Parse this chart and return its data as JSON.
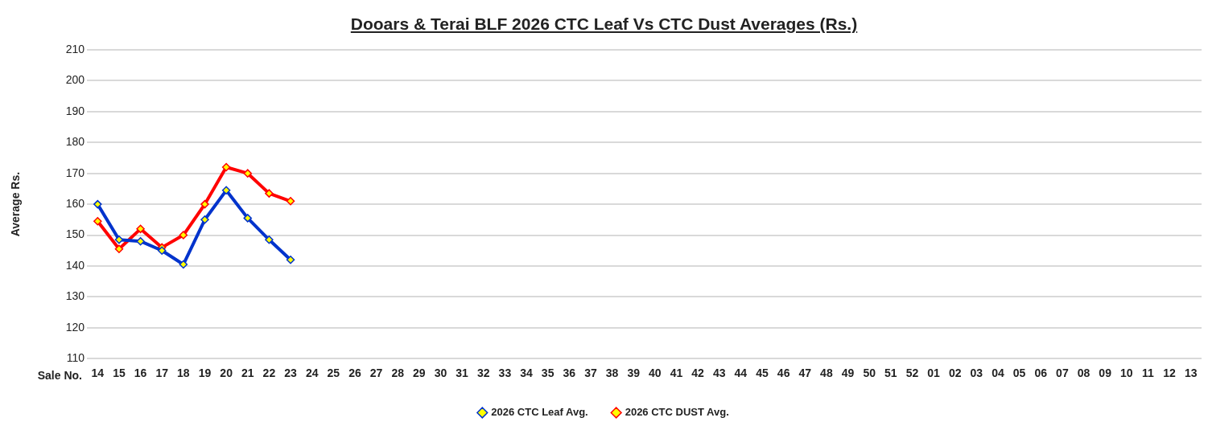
{
  "chart_data": {
    "type": "line",
    "title": "Dooars & Terai BLF 2026 CTC Leaf Vs CTC Dust Averages (Rs.)",
    "xlabel": "Sale No.",
    "ylabel": "Average Rs.",
    "categories": [
      "14",
      "15",
      "16",
      "17",
      "18",
      "19",
      "20",
      "21",
      "22",
      "23",
      "24",
      "25",
      "26",
      "27",
      "28",
      "29",
      "30",
      "31",
      "32",
      "33",
      "34",
      "35",
      "36",
      "37",
      "38",
      "39",
      "40",
      "41",
      "42",
      "43",
      "44",
      "45",
      "46",
      "47",
      "48",
      "49",
      "50",
      "51",
      "52",
      "01",
      "02",
      "03",
      "04",
      "05",
      "06",
      "07",
      "08",
      "09",
      "10",
      "11",
      "12",
      "13"
    ],
    "series": [
      {
        "name": "2026 CTC Leaf Avg.",
        "color": "#0033cc",
        "values": [
          160,
          148.5,
          148,
          145,
          140.5,
          155,
          164.5,
          155.5,
          148.5,
          142,
          null,
          null,
          null,
          null,
          null,
          null,
          null,
          null,
          null,
          null,
          null,
          null,
          null,
          null,
          null,
          null,
          null,
          null,
          null,
          null,
          null,
          null,
          null,
          null,
          null,
          null,
          null,
          null,
          null,
          null,
          null,
          null,
          null,
          null,
          null,
          null,
          null,
          null,
          null,
          null,
          null,
          null
        ]
      },
      {
        "name": "2026 CTC DUST Avg.",
        "color": "#ff0000",
        "values": [
          154.5,
          145.5,
          152,
          146,
          150,
          160,
          172,
          170,
          163.5,
          161,
          null,
          null,
          null,
          null,
          null,
          null,
          null,
          null,
          null,
          null,
          null,
          null,
          null,
          null,
          null,
          null,
          null,
          null,
          null,
          null,
          null,
          null,
          null,
          null,
          null,
          null,
          null,
          null,
          null,
          null,
          null,
          null,
          null,
          null,
          null,
          null,
          null,
          null,
          null,
          null,
          null,
          null
        ]
      }
    ],
    "ylim": [
      110,
      210
    ],
    "yticks": [
      110,
      120,
      130,
      140,
      150,
      160,
      170,
      180,
      190,
      200,
      210
    ],
    "grid": "y",
    "legend": "bottom",
    "marker": "diamond",
    "line_style": "solid"
  }
}
